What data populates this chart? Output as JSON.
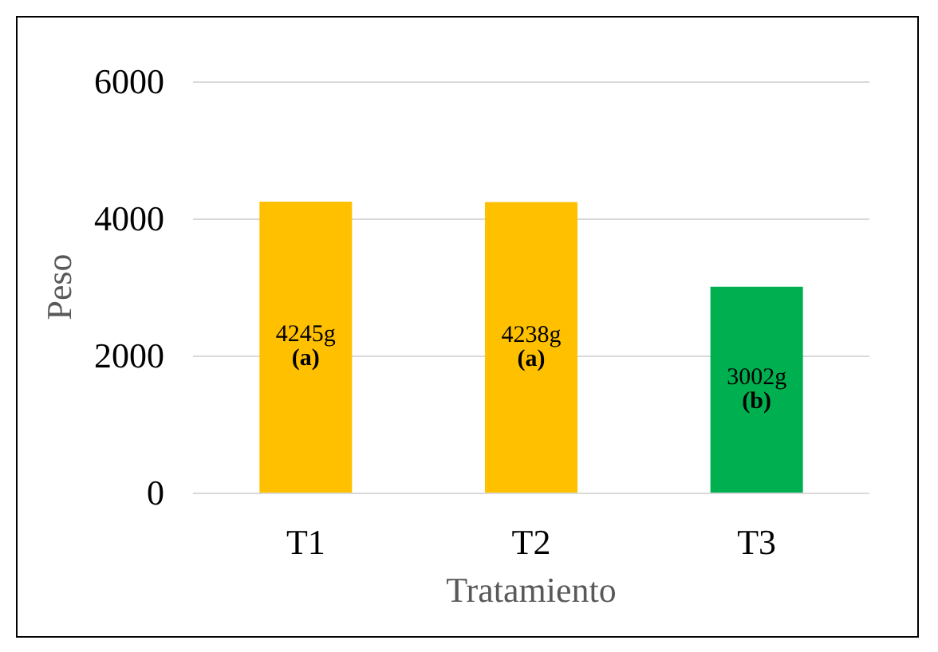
{
  "chart_data": {
    "type": "bar",
    "xlabel": "Tratamiento",
    "ylabel": "Peso",
    "categories": [
      "T1",
      "T2",
      "T3"
    ],
    "values": [
      4245,
      4238,
      3002
    ],
    "colors": [
      "#ffc000",
      "#ffc000",
      "#00b050"
    ],
    "value_labels": [
      "4245g (a)",
      "4238g (a)",
      "3002g (b)"
    ],
    "ylim": [
      0,
      6000
    ],
    "yticks": [
      0,
      2000,
      4000,
      6000
    ],
    "grid": "y"
  }
}
